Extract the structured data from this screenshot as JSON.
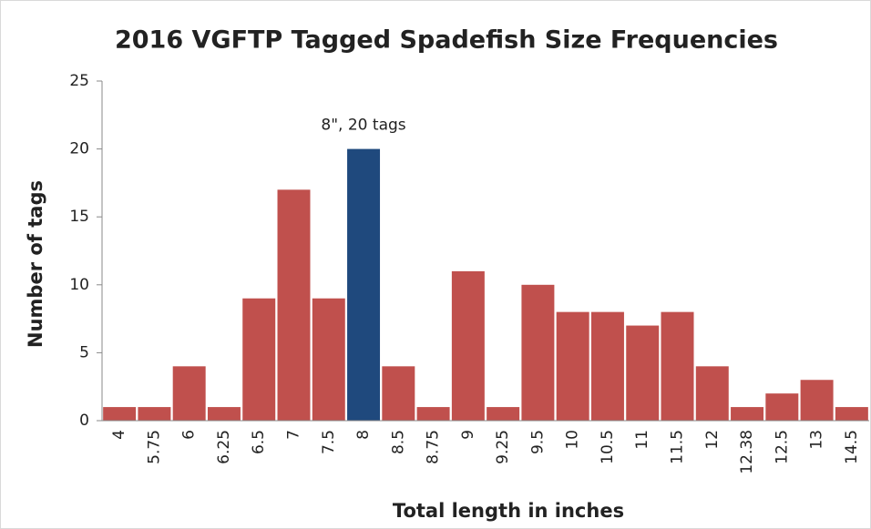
{
  "chart_data": {
    "type": "bar",
    "title": "2016 VGFTP Tagged Spadefish Size Frequencies",
    "x_label": "Total length in inches",
    "y_label": "Number of tags",
    "categories": [
      "4",
      "5.75",
      "6",
      "6.25",
      "6.5",
      "7",
      "7.5",
      "8",
      "8.5",
      "8.75",
      "9",
      "9.25",
      "9.5",
      "10",
      "10.5",
      "11",
      "11.5",
      "12",
      "12.38",
      "12.5",
      "13",
      "14.5"
    ],
    "values": [
      1,
      1,
      4,
      1,
      9,
      17,
      9,
      20,
      4,
      1,
      11,
      1,
      10,
      8,
      8,
      7,
      8,
      4,
      1,
      2,
      3,
      1
    ],
    "colors": [
      "#c0504d",
      "#c0504d",
      "#c0504d",
      "#c0504d",
      "#c0504d",
      "#c0504d",
      "#c0504d",
      "#1f497d",
      "#c0504d",
      "#c0504d",
      "#c0504d",
      "#c0504d",
      "#c0504d",
      "#c0504d",
      "#c0504d",
      "#c0504d",
      "#c0504d",
      "#c0504d",
      "#c0504d",
      "#c0504d",
      "#c0504d",
      "#c0504d"
    ],
    "ylim": [
      0,
      25
    ],
    "yticks": [
      0,
      5,
      10,
      15,
      20,
      25
    ],
    "grid": false,
    "annotation": {
      "text": "8\", 20 tags",
      "x": "8",
      "y": 20
    }
  }
}
